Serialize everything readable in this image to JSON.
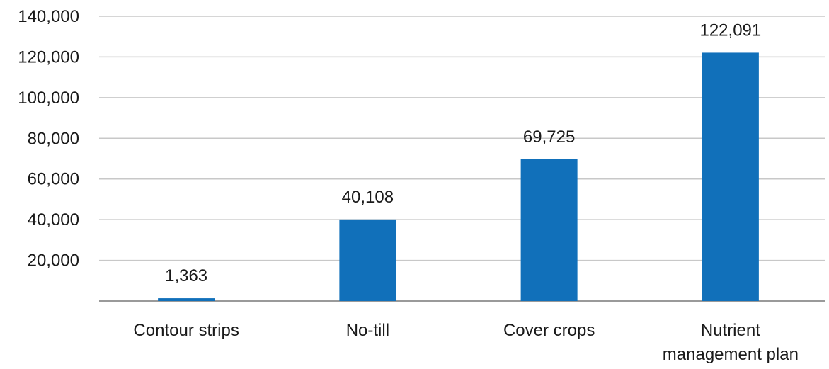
{
  "chart_data": {
    "type": "bar",
    "title": "",
    "xlabel": "",
    "ylabel": "",
    "categories": [
      [
        "Contour strips"
      ],
      [
        "No-till"
      ],
      [
        "Cover crops"
      ],
      [
        "Nutrient",
        "management plan"
      ]
    ],
    "values": [
      1363,
      40108,
      69725,
      122091
    ],
    "value_labels": [
      "1,363",
      "40,108",
      "69,725",
      "122,091"
    ],
    "ylim": [
      0,
      140000
    ],
    "yticks": [
      20000,
      40000,
      60000,
      80000,
      100000,
      120000,
      140000
    ],
    "ytick_labels": [
      "20,000",
      "40,000",
      "60,000",
      "80,000",
      "100,000",
      "120,000",
      "140,000"
    ],
    "grid": true,
    "legend": "none",
    "colors": {
      "bar": "#1170ba",
      "grid": "#c8c8c8",
      "axis": "#9a9a9a"
    }
  }
}
